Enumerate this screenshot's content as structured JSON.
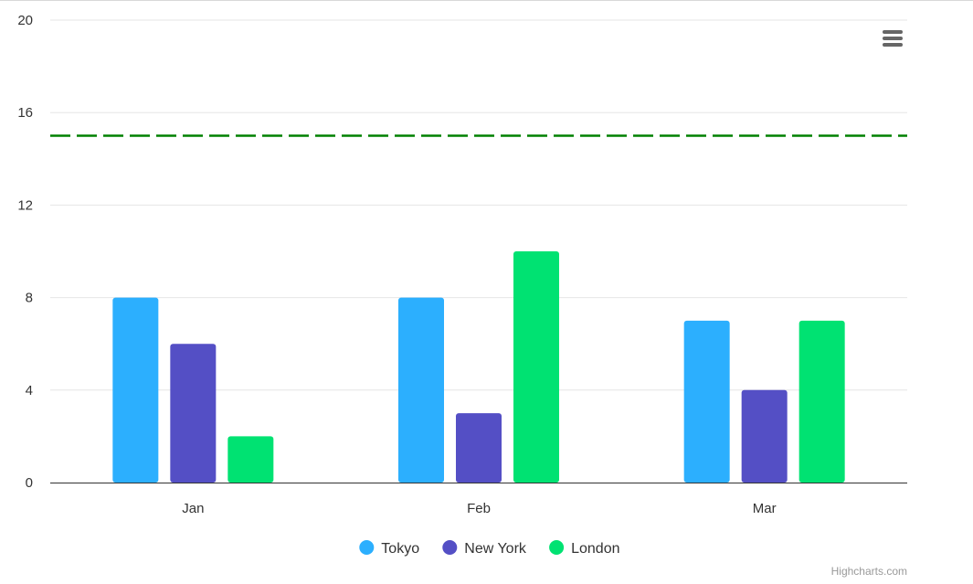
{
  "chart_data": {
    "type": "bar",
    "categories": [
      "Jan",
      "Feb",
      "Mar"
    ],
    "series": [
      {
        "name": "Tokyo",
        "values": [
          8,
          8,
          7
        ],
        "color": "#2caffe"
      },
      {
        "name": "New York",
        "values": [
          6,
          3,
          4
        ],
        "color": "#544fc5"
      },
      {
        "name": "London",
        "values": [
          2,
          10,
          7
        ],
        "color": "#00e272"
      }
    ],
    "ylim": [
      0,
      20
    ],
    "yticks": [
      0,
      4,
      8,
      12,
      16,
      20
    ],
    "plot_line": {
      "value": 15,
      "color": "#008000",
      "style": "dashed"
    },
    "grid": true,
    "legend_position": "bottom-center",
    "title": "",
    "xlabel": "",
    "ylabel": ""
  },
  "credits": "Highcharts.com",
  "menu_icon": "hamburger-menu-icon"
}
